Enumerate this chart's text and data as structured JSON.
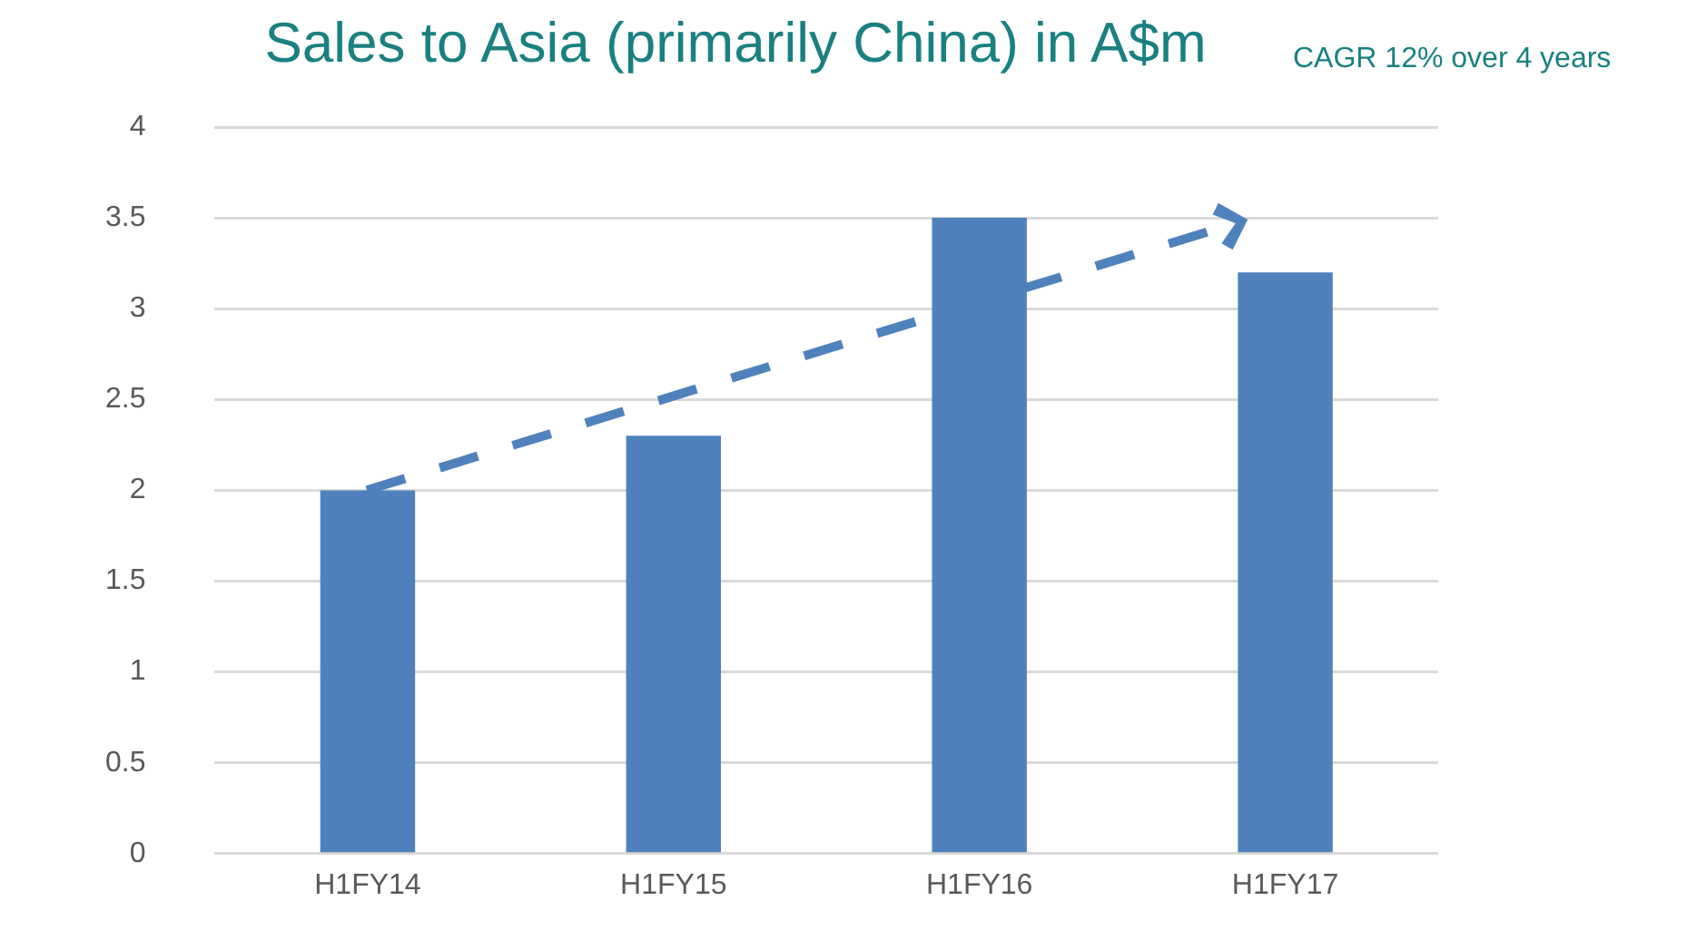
{
  "chart_data": {
    "type": "bar",
    "title": "Sales to Asia (primarily China)  in A$m",
    "annotations": [
      "CAGR 12% over 4 years"
    ],
    "categories": [
      "H1FY14",
      "H1FY15",
      "H1FY16",
      "H1FY17"
    ],
    "values": [
      2,
      2.3,
      3.5,
      3.2
    ],
    "color": "#4f81bd",
    "ylim": [
      0,
      4
    ],
    "yticks": [
      0,
      0.5,
      1,
      1.5,
      2,
      2.5,
      3,
      3.5,
      4
    ],
    "grid": "y",
    "legend": false
  }
}
